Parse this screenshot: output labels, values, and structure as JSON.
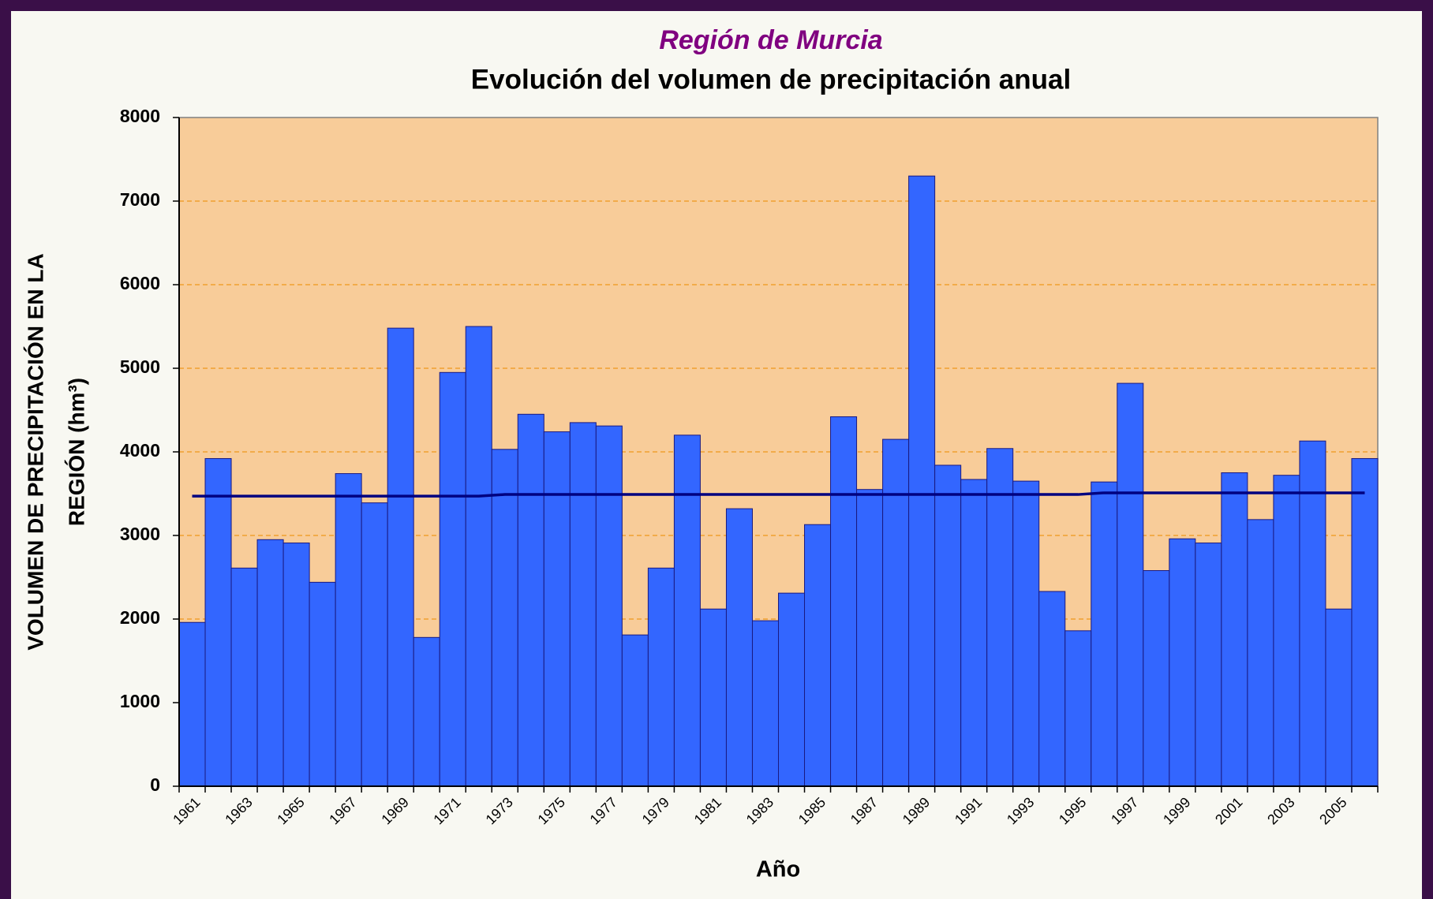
{
  "chart_data": {
    "type": "bar",
    "title": "Región de Murcia",
    "subtitle": "Evolución del volumen de precipitación anual",
    "x_label": "Año",
    "y_label": [
      "VOLUMEN DE PRECIPITACIÓN EN LA",
      "REGIÓN (hm³)"
    ],
    "categories": [
      "1961",
      null,
      "1963",
      null,
      "1965",
      null,
      "1967",
      null,
      "1969",
      null,
      "1971",
      null,
      "1973",
      null,
      "1975",
      null,
      "1977",
      null,
      "1979",
      null,
      "1981",
      null,
      "1983",
      null,
      "1985",
      null,
      "1987",
      null,
      "1989",
      null,
      "1991",
      null,
      "1993",
      null,
      "1995",
      null,
      "1997",
      null,
      "1999",
      null,
      "2001",
      null,
      "2003",
      null,
      "2005",
      null
    ],
    "series": [
      {
        "color": "#3366ff",
        "values": [
          1960,
          3920,
          2610,
          2950,
          2910,
          2440,
          3740,
          3390,
          5480,
          1780,
          4950,
          5500,
          4030,
          4450,
          4240,
          4350,
          4310,
          1810,
          2610,
          4200,
          2120,
          3320,
          1980,
          2310,
          3130,
          4420,
          3550,
          4150,
          7300,
          3840,
          3670,
          4040,
          3650,
          2330,
          1860,
          3640,
          4820,
          2580,
          2960,
          2910,
          3750,
          3190,
          3720,
          4130,
          2120,
          3920
        ]
      },
      {
        "type": "line",
        "color": "#000080",
        "values": [
          3470,
          3470,
          3470,
          3470,
          3470,
          3470,
          3470,
          3470,
          3470,
          3470,
          3470,
          3470,
          3490,
          3490,
          3490,
          3490,
          3490,
          3490,
          3490,
          3490,
          3490,
          3490,
          3490,
          3490,
          3490,
          3490,
          3490,
          3490,
          3490,
          3490,
          3490,
          3490,
          3490,
          3490,
          3490,
          3510,
          3510,
          3510,
          3510,
          3510,
          3510,
          3510,
          3510,
          3510,
          3510,
          3510
        ]
      }
    ],
    "ylim": [
      0,
      8000
    ],
    "yticks": [
      0,
      1000,
      2000,
      3000,
      4000,
      5000,
      6000,
      7000,
      8000
    ],
    "grid": true,
    "plot_background": "#f8cc99",
    "grid_color": "#f0a030"
  }
}
